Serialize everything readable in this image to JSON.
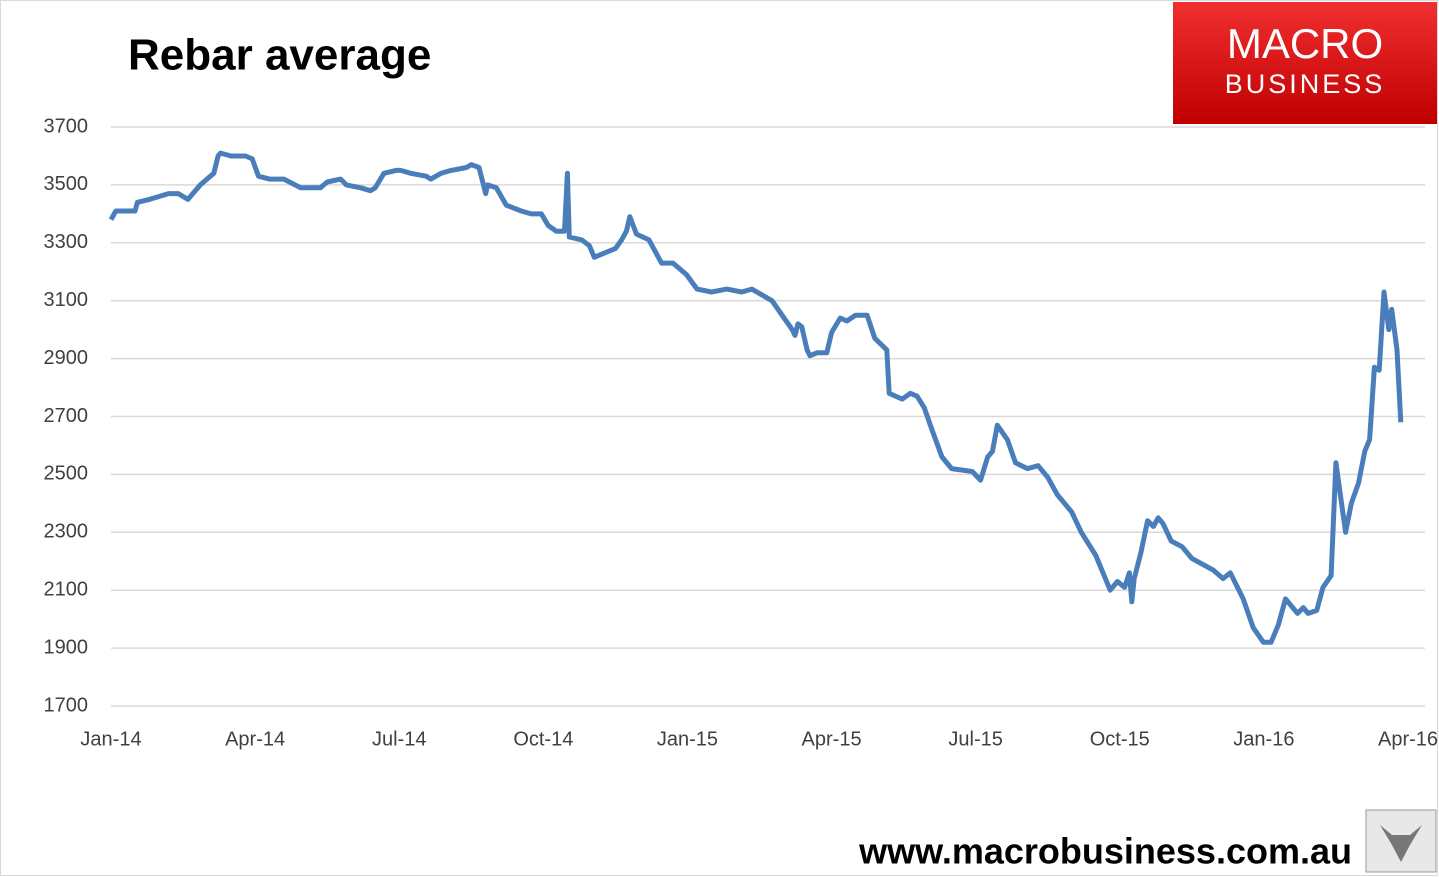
{
  "chart_data": {
    "type": "line",
    "title": "Rebar average",
    "x_unit_note_free": null,
    "series": [
      {
        "name": "Rebar average",
        "color": "#4a7ebb",
        "x": [
          0,
          0.1,
          0.5,
          0.55,
          0.8,
          1.0,
          1.2,
          1.4,
          1.6,
          1.86,
          2.07,
          2.14,
          2.23,
          2.28,
          2.5,
          2.8,
          2.94,
          3.07,
          3.3,
          3.6,
          3.95,
          4.36,
          4.5,
          4.78,
          4.9,
          5.2,
          5.4,
          5.5,
          5.68,
          5.93,
          6.03,
          6.24,
          6.56,
          6.66,
          6.87,
          7.08,
          7.4,
          7.5,
          7.66,
          7.8,
          7.84,
          8.02,
          8.23,
          8.54,
          8.75,
          8.96,
          9.1,
          9.27,
          9.44,
          9.5,
          9.54,
          9.8,
          9.96,
          10.06,
          10.2,
          10.5,
          10.63,
          10.73,
          10.8,
          10.94,
          11.2,
          11.46,
          11.7,
          11.98,
          12.2,
          12.5,
          12.82,
          13.13,
          13.34,
          13.55,
          13.76,
          13.97,
          14.18,
          14.24,
          14.3,
          14.38,
          14.49,
          14.55,
          14.7,
          14.9,
          15.0,
          15.18,
          15.32,
          15.5,
          15.74,
          15.9,
          16.15,
          16.2,
          16.47,
          16.64,
          16.78,
          16.93,
          17.1,
          17.3,
          17.5,
          17.93,
          18.1,
          18.25,
          18.35,
          18.45,
          18.66,
          18.83,
          19.08,
          19.3,
          19.5,
          19.7,
          20.0,
          20.2,
          20.5,
          20.8,
          20.95,
          21.1,
          21.2,
          21.25,
          21.3,
          21.44,
          21.58,
          21.7,
          21.8,
          21.9,
          22.07,
          22.3,
          22.5,
          22.94,
          23.15,
          23.3,
          23.57,
          23.78,
          23.99,
          24.15,
          24.3,
          24.45,
          24.7,
          24.82,
          24.92,
          25.1,
          25.23,
          25.4,
          25.5,
          25.7,
          25.82,
          25.97,
          26.1,
          26.2,
          26.3,
          26.4,
          26.5,
          26.6,
          26.66,
          26.77,
          26.85
        ],
        "values": [
          3380,
          3410,
          3410,
          3440,
          3450,
          3460,
          3470,
          3470,
          3450,
          3500,
          3530,
          3540,
          3600,
          3610,
          3600,
          3600,
          3590,
          3530,
          3520,
          3520,
          3490,
          3490,
          3510,
          3520,
          3500,
          3490,
          3480,
          3490,
          3540,
          3550,
          3550,
          3540,
          3530,
          3520,
          3540,
          3550,
          3560,
          3570,
          3560,
          3470,
          3500,
          3490,
          3430,
          3410,
          3400,
          3400,
          3360,
          3340,
          3340,
          3540,
          3320,
          3310,
          3290,
          3250,
          3260,
          3280,
          3310,
          3340,
          3390,
          3330,
          3310,
          3230,
          3230,
          3190,
          3140,
          3130,
          3140,
          3130,
          3140,
          3120,
          3100,
          3050,
          3000,
          2980,
          3020,
          3010,
          2930,
          2910,
          2920,
          2920,
          2990,
          3040,
          3030,
          3050,
          3050,
          2970,
          2930,
          2780,
          2760,
          2780,
          2770,
          2730,
          2650,
          2560,
          2520,
          2510,
          2480,
          2560,
          2580,
          2670,
          2620,
          2540,
          2520,
          2530,
          2490,
          2430,
          2370,
          2300,
          2220,
          2100,
          2130,
          2110,
          2160,
          2060,
          2140,
          2230,
          2340,
          2320,
          2350,
          2330,
          2270,
          2250,
          2210,
          2170,
          2140,
          2160,
          2070,
          1970,
          1920,
          1920,
          1980,
          2070,
          2020,
          2040,
          2020,
          2030,
          2110,
          2150,
          2540,
          2300,
          2400,
          2470,
          2580,
          2620,
          2870,
          2860,
          3130,
          3000,
          3070,
          2930,
          2680
        ]
      }
    ],
    "xlim": [
      0,
      27
    ],
    "xticks": [
      {
        "value": 0,
        "label": "Jan-14"
      },
      {
        "value": 3,
        "label": "Apr-14"
      },
      {
        "value": 6,
        "label": "Jul-14"
      },
      {
        "value": 9,
        "label": "Oct-14"
      },
      {
        "value": 12,
        "label": "Jan-15"
      },
      {
        "value": 15,
        "label": "Apr-15"
      },
      {
        "value": 18,
        "label": "Jul-15"
      },
      {
        "value": 21,
        "label": "Oct-15"
      },
      {
        "value": 24,
        "label": "Jan-16"
      },
      {
        "value": 27,
        "label": "Apr-16"
      }
    ],
    "ylim": [
      1700,
      3700
    ],
    "yticks": [
      1700,
      1900,
      2100,
      2300,
      2500,
      2700,
      2900,
      3100,
      3300,
      3500,
      3700
    ],
    "grid": true
  },
  "logo": {
    "line1": "MACRO",
    "line2": "BUSINESS"
  },
  "footer": {
    "url": "www.macrobusiness.com.au"
  }
}
